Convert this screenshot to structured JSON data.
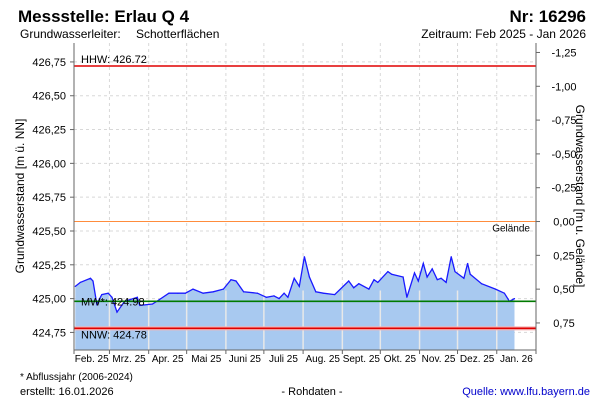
{
  "header": {
    "title": "Messstelle: Erlau Q 4",
    "number": "Nr: 16296",
    "aquifer_label": "Grundwasserleiter:",
    "aquifer_value": "Schotterflächen",
    "period": "Zeitraum: Feb 2025 - Jan 2026"
  },
  "footer": {
    "note": "* Abflussjahr (2006-2024)",
    "created": "erstellt:  16.01.2026",
    "raw": "- Rohdaten -",
    "source": "Quelle:  www.lfu.bayern.de"
  },
  "colors": {
    "line": "#1a1aff",
    "fill": "#a8c9f0",
    "hhw": "#e00000",
    "nnw": "#e00000",
    "mw": "#007a00",
    "gelaende": "#ff8c3c"
  },
  "chart_data": {
    "type": "area",
    "ylabel": "Grundwasserstand [m ü. NN]",
    "ylabel_right": "Grundwasserstand [m u. Gelände]",
    "ylim": [
      424.62,
      426.89
    ],
    "yticks": [
      "426,75",
      "426,50",
      "426,25",
      "426,00",
      "425,75",
      "425,50",
      "425,25",
      "425,00",
      "424,75"
    ],
    "ytick_values": [
      426.75,
      426.5,
      426.25,
      426.0,
      425.75,
      425.5,
      425.25,
      425.0,
      424.75
    ],
    "yticks_right": [
      "-1,25",
      "-1,00",
      "-0,75",
      "-0,50",
      "-0,25",
      "0,00",
      "0,25",
      "0,50",
      "0,75"
    ],
    "yticks_right_values": [
      -1.25,
      -1.0,
      -0.75,
      -0.5,
      -0.25,
      0.0,
      0.25,
      0.5,
      0.75
    ],
    "x_unit": "days since 01.02.2025",
    "month_labels": [
      "Feb. 25",
      "Mrz. 25",
      "Apr. 25",
      "Mai 25",
      "Juni 25",
      "Juli 25",
      "Aug. 25",
      "Sept. 25",
      "Okt. 25",
      "Nov. 25",
      "Dez. 25",
      "Jan. 26"
    ],
    "month_starts": [
      0,
      28,
      59,
      89,
      120,
      150,
      181,
      212,
      242,
      273,
      303,
      334,
      365
    ],
    "reference_lines": [
      {
        "name": "HHW",
        "label": "HHW: 426.72",
        "value": 426.72
      },
      {
        "name": "Gelände",
        "label": "Gelände",
        "value": 425.57
      },
      {
        "name": "MW",
        "label": "MW*: 424.98",
        "value": 424.98
      },
      {
        "name": "NNW",
        "label": "NNW: 424.78",
        "value": 424.78
      }
    ],
    "series": [
      {
        "name": "Grundwasserstand",
        "points": [
          [
            1,
            425.09
          ],
          [
            5,
            425.12
          ],
          [
            13,
            425.15
          ],
          [
            15,
            425.13
          ],
          [
            18,
            424.96
          ],
          [
            22,
            425.03
          ],
          [
            27,
            425.04
          ],
          [
            30,
            425.01
          ],
          [
            34,
            424.9
          ],
          [
            40,
            424.98
          ],
          [
            50,
            425.01
          ],
          [
            52,
            424.95
          ],
          [
            62,
            424.96
          ],
          [
            67,
            424.99
          ],
          [
            75,
            425.04
          ],
          [
            82,
            425.04
          ],
          [
            88,
            425.04
          ],
          [
            94,
            425.07
          ],
          [
            102,
            425.04
          ],
          [
            110,
            425.05
          ],
          [
            118,
            425.07
          ],
          [
            124,
            425.14
          ],
          [
            128,
            425.13
          ],
          [
            134,
            425.05
          ],
          [
            145,
            425.04
          ],
          [
            152,
            425.01
          ],
          [
            158,
            425.02
          ],
          [
            162,
            425.0
          ],
          [
            166,
            425.04
          ],
          [
            169,
            425.01
          ],
          [
            174,
            425.15
          ],
          [
            178,
            425.09
          ],
          [
            182,
            425.31
          ],
          [
            186,
            425.16
          ],
          [
            191,
            425.05
          ],
          [
            197,
            425.04
          ],
          [
            206,
            425.03
          ],
          [
            217,
            425.13
          ],
          [
            221,
            425.08
          ],
          [
            225,
            425.11
          ],
          [
            233,
            425.07
          ],
          [
            237,
            425.14
          ],
          [
            240,
            425.12
          ],
          [
            248,
            425.2
          ],
          [
            251,
            425.18
          ],
          [
            260,
            425.16
          ],
          [
            263,
            425.01
          ],
          [
            269,
            425.19
          ],
          [
            272,
            425.13
          ],
          [
            276,
            425.26
          ],
          [
            279,
            425.16
          ],
          [
            283,
            425.22
          ],
          [
            287,
            425.14
          ],
          [
            290,
            425.15
          ],
          [
            294,
            425.12
          ],
          [
            298,
            425.31
          ],
          [
            301,
            425.2
          ],
          [
            308,
            425.15
          ],
          [
            311,
            425.26
          ],
          [
            313,
            425.18
          ],
          [
            322,
            425.11
          ],
          [
            333,
            425.07
          ],
          [
            340,
            425.04
          ],
          [
            344,
            424.98
          ],
          [
            348,
            425.0
          ]
        ]
      }
    ]
  }
}
